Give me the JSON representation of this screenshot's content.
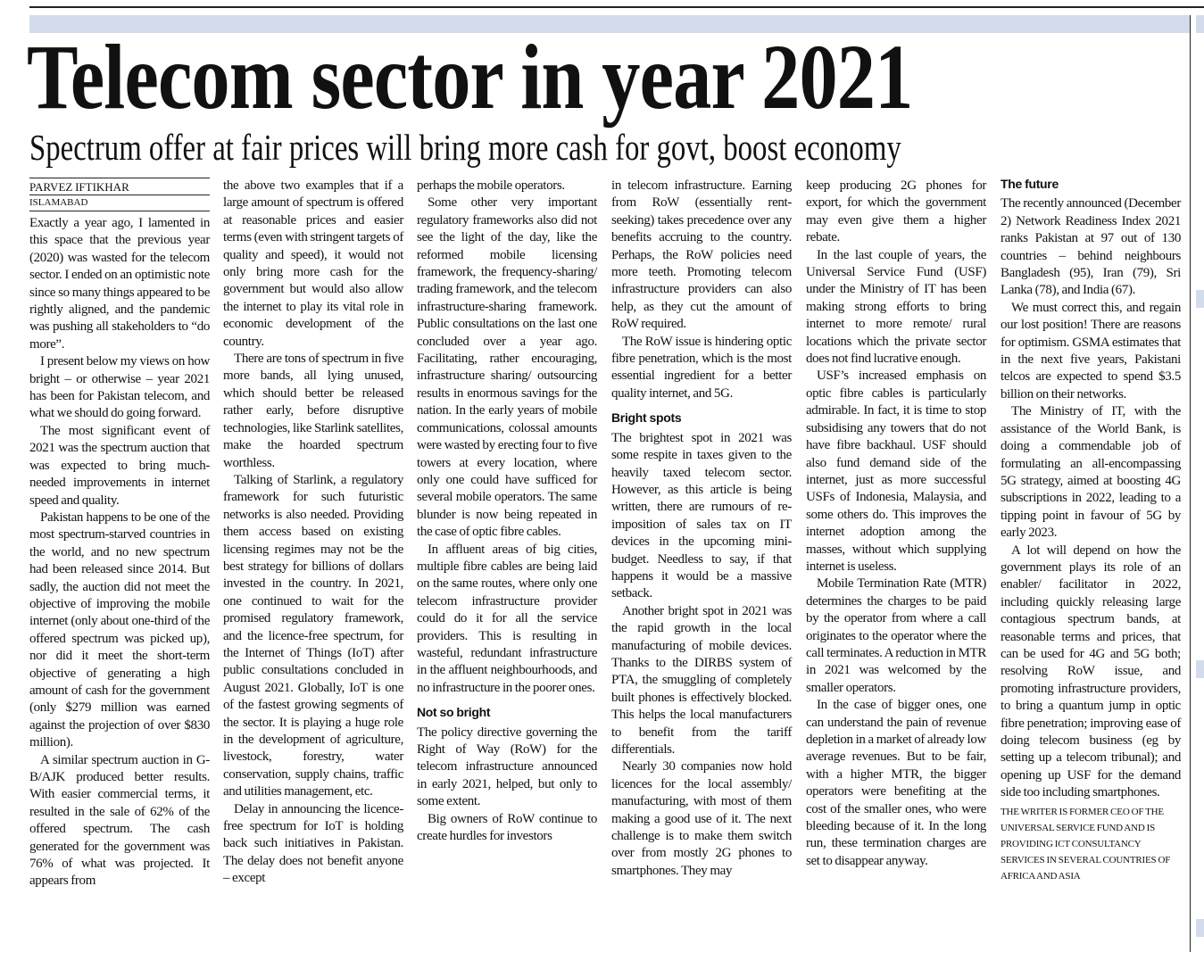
{
  "headline": "Telecom sector in year 2021",
  "subheadline": "Spectrum offer at fair prices will bring more cash for govt, boost economy",
  "byline": {
    "author": "PARVEZ IFTIKHAR",
    "location": "ISLAMABAD"
  },
  "columns": [
    {
      "blocks": [
        {
          "type": "p",
          "first": true,
          "text": "Exactly a year ago, I lamented in this space that the previous year (2020) was wasted for the telecom sector. I ended on an optimistic note since so many things appeared to be rightly aligned, and the pandemic was pushing all stakeholders to “do more”."
        },
        {
          "type": "p",
          "text": "I present below my views on how bright – or otherwise – year 2021 has been for Pakistan telecom, and what we should do going forward."
        },
        {
          "type": "p",
          "text": "The most significant event of 2021 was the spectrum auction that was expected to bring much-needed improvements in internet speed and quality."
        },
        {
          "type": "p",
          "text": "Pakistan happens to be one of the most spectrum-starved countries in the world, and no new spectrum had been released since 2014. But sadly, the auction did not meet the objective of improving the mobile internet (only about one-third of the offered spectrum was picked up), nor did it meet the short-term objective of generating a high amount of cash for the government (only $279 million was earned against the projection of over $830 million)."
        },
        {
          "type": "p",
          "text": "A similar spectrum auction in G-B/AJK produced better results. With easier commercial terms, it resulted in the sale of 62% of the offered spectrum. The cash generated for the government was 76% of what was projected. It appears from"
        }
      ]
    },
    {
      "blocks": [
        {
          "type": "p",
          "first": true,
          "text": "the above two examples that if a large amount of spectrum is offered at reasonable prices and easier terms (even with stringent targets of quality and speed), it would not only bring more cash for the government but would also allow the internet to play its vital role in economic development of the country."
        },
        {
          "type": "p",
          "text": "There are tons of spectrum in five more bands, all lying unused, which should better be released rather early, before disruptive technologies, like Starlink satellites, make the hoarded spectrum worthless."
        },
        {
          "type": "p",
          "text": "Talking of Starlink, a regulatory framework for such futuristic networks is also needed. Providing them access based on existing licensing regimes may not be the best strategy for billions of dollars invested in the country. In 2021, one continued to wait for the promised regulatory framework, and the licence-free spectrum, for the Internet of Things (IoT) after public consultations concluded in August 2021. Globally, IoT is one of the fastest growing segments of the sector. It is playing a huge role in the development of agriculture, livestock, forestry, water conservation, supply chains, traffic and utilities management, etc."
        },
        {
          "type": "p",
          "text": "Delay in announcing the licence-free spectrum for IoT is holding back such initiatives in Pakistan. The delay does not benefit anyone – except"
        }
      ]
    },
    {
      "blocks": [
        {
          "type": "p",
          "first": true,
          "text": "perhaps the mobile operators."
        },
        {
          "type": "p",
          "text": "Some other very important regulatory frameworks also did not see the light of the day, like the reformed mobile licensing framework, the frequency-sharing/ trading framework, and the telecom infrastructure-sharing framework. Public consultations on the last one concluded over a year ago. Facilitating, rather encouraging, infrastructure sharing/ outsourcing results in enormous savings for the nation. In the early years of mobile communications, colossal amounts were wasted by erecting four to five towers at every location, where only one could have sufficed for several mobile operators. The same blunder is now being repeated in the case of optic fibre cables."
        },
        {
          "type": "p",
          "text": "In affluent areas of big cities, multiple fibre cables are being laid on the same routes, where only one telecom infrastructure provider could do it for all the service providers. This is resulting in wasteful, redundant infrastructure in the affluent neighbourhoods, and no infrastructure in the poorer ones."
        },
        {
          "type": "h",
          "text": "Not so bright"
        },
        {
          "type": "p",
          "first": true,
          "text": "The policy directive governing the Right of Way (RoW) for the telecom infrastructure announced in early 2021, helped, but only to some extent."
        },
        {
          "type": "p",
          "text": "Big owners of RoW continue to create hurdles for investors"
        }
      ]
    },
    {
      "blocks": [
        {
          "type": "p",
          "first": true,
          "text": "in telecom infrastructure. Earning from RoW (essentially rent-seeking) takes precedence over any benefits accruing to the country. Perhaps, the RoW policies need more teeth. Promoting telecom infrastructure providers can also help, as they cut the amount of RoW required."
        },
        {
          "type": "p",
          "text": "The RoW issue is hindering optic fibre penetration, which is the most essential ingredient for a better quality internet, and 5G."
        },
        {
          "type": "h",
          "text": "Bright spots"
        },
        {
          "type": "p",
          "first": true,
          "text": "The brightest spot in 2021 was some respite in taxes given to the heavily taxed telecom sector. However, as this article is being written, there are rumours of re-imposition of sales tax on IT devices in the upcoming mini-budget. Needless to say, if that happens it would be a massive setback."
        },
        {
          "type": "p",
          "text": "Another bright spot in 2021 was the rapid growth in the local manufacturing of mobile devices. Thanks to the DIRBS system of PTA, the smuggling of completely built phones is effectively blocked. This helps the local manufacturers to benefit from the tariff differentials."
        },
        {
          "type": "p",
          "text": "Nearly 30 companies now hold licences for the local assembly/ manufacturing, with most of them making a good use of it. The next challenge is to make them switch over from mostly 2G phones to smartphones. They may"
        }
      ]
    },
    {
      "blocks": [
        {
          "type": "p",
          "first": true,
          "text": "keep producing 2G phones for export, for which the government may even give them a higher rebate."
        },
        {
          "type": "p",
          "text": "In the last couple of years, the Universal Service Fund (USF) under the Ministry of IT has been making strong efforts to bring internet to more remote/ rural locations which the private sector does not find lucrative enough."
        },
        {
          "type": "p",
          "text": "USF’s increased emphasis on optic fibre cables is particularly admirable. In fact, it is time to stop subsidising any towers that do not have fibre backhaul. USF should also fund demand side of the internet, just as more successful USFs of Indonesia, Malaysia, and some others do. This improves the internet adoption among the masses, without which supplying internet is useless."
        },
        {
          "type": "p",
          "text": "Mobile Termination Rate (MTR) determines the charges to be paid by the operator from where a call originates to the operator where the call terminates. A reduction in MTR in 2021 was welcomed by the smaller operators."
        },
        {
          "type": "p",
          "text": "In the case of bigger ones, one can understand the pain of revenue depletion in a market of already low average revenues. But to be fair, with a higher MTR, the bigger operators were benefiting at the cost of the smaller ones, who were bleeding because of it. In the long run, these termination charges are set to disappear anyway."
        }
      ]
    },
    {
      "blocks": [
        {
          "type": "h",
          "text": "The future"
        },
        {
          "type": "p",
          "first": true,
          "text": "The recently announced (December 2) Network Readiness Index 2021 ranks Pakistan at 97 out of 130 countries – behind neighbours Bangladesh (95), Iran (79), Sri Lanka (78), and India (67)."
        },
        {
          "type": "p",
          "text": "We must correct this, and regain our lost position! There are reasons for optimism. GSMA estimates that in the next five years, Pakistani telcos are expected to spend $3.5 billion on their networks."
        },
        {
          "type": "p",
          "text": "The Ministry of IT, with the assistance of the World Bank, is doing a commendable job of formulating an all-encompassing 5G strategy, aimed at boosting 4G subscriptions in 2022, leading to a tipping point in favour of 5G by early 2023."
        },
        {
          "type": "p",
          "text": "A lot will depend on how the government plays its role of an enabler/ facilitator in 2022, including quickly releasing large contagious spectrum bands, at reasonable terms and prices, that can be used for 4G and 5G both; resolving RoW issue, and promoting infrastructure providers, to bring a quantum jump in optic fibre penetration; improving ease of doing telecom business (eg by setting up a telecom tribunal); and opening up USF for the demand side too including smartphones."
        },
        {
          "type": "bio",
          "text": "THE WRITER IS FORMER CEO OF THE UNIVERSAL SERVICE FUND AND IS PROVIDING ICT CONSULTANCY SERVICES IN SEVERAL COUNTRIES OF AFRICA AND ASIA"
        }
      ]
    }
  ]
}
